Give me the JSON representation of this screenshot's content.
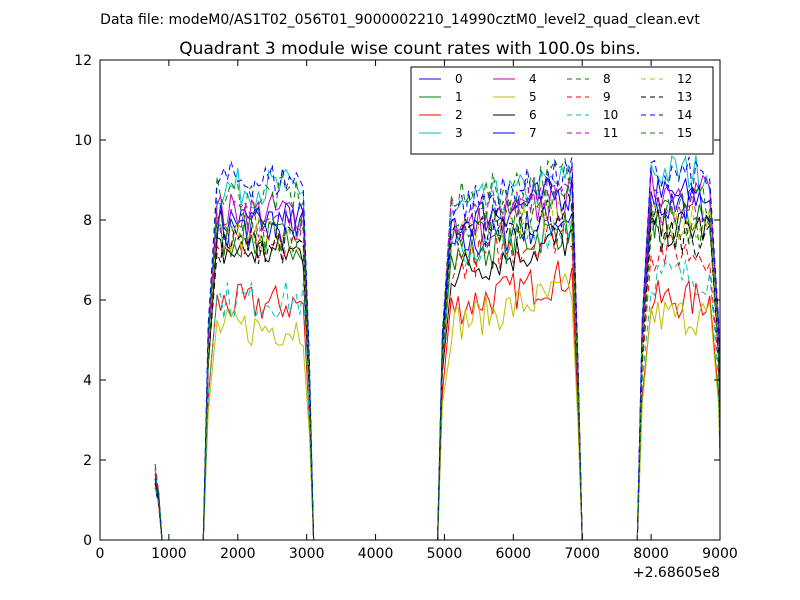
{
  "chart_data": {
    "type": "line",
    "suptitle": "Data file: modeM0/AS1T02_056T01_9000002210_14990cztM0_level2_quad_clean.evt",
    "title": "Quadrant 3 module wise count rates with 100.0s bins.",
    "xlabel": "",
    "ylabel": "",
    "x_offset_label": "+2.68605e8",
    "xlim": [
      0,
      9000
    ],
    "ylim": [
      0,
      12
    ],
    "xticks": [
      0,
      1000,
      2000,
      3000,
      4000,
      5000,
      6000,
      7000,
      8000,
      9000
    ],
    "yticks": [
      0,
      2,
      4,
      6,
      8,
      10,
      12
    ],
    "grid": false,
    "legend": {
      "location": "top-right",
      "columns": 4
    },
    "segments": [
      {
        "start": 800,
        "end": 900,
        "curve": "start"
      },
      {
        "start": 1500,
        "end": 3100,
        "curve": "group1"
      },
      {
        "start": 4900,
        "end": 7000,
        "curve": "group2"
      },
      {
        "start": 7800,
        "end": 9000,
        "curve": "group3"
      }
    ],
    "series": [
      {
        "name": "0",
        "color": "#0000ff",
        "dash": "solid",
        "s1": 8.0,
        "s2": 7.6,
        "s3": 8.6
      },
      {
        "name": "1",
        "color": "#008000",
        "dash": "solid",
        "s1": 7.5,
        "s2": 7.3,
        "s3": 8.0
      },
      {
        "name": "2",
        "color": "#ff0000",
        "dash": "solid",
        "s1": 5.9,
        "s2": 6.1,
        "s3": 6.0
      },
      {
        "name": "3",
        "color": "#00bfbf",
        "dash": "solid",
        "s1": 8.8,
        "s2": 8.5,
        "s3": 9.2
      },
      {
        "name": "4",
        "color": "#bf00bf",
        "dash": "solid",
        "s1": 8.2,
        "s2": 8.0,
        "s3": 8.8
      },
      {
        "name": "5",
        "color": "#bfbf00",
        "dash": "solid",
        "s1": 5.3,
        "s2": 5.7,
        "s3": 5.6
      },
      {
        "name": "6",
        "color": "#000000",
        "dash": "solid",
        "s1": 7.2,
        "s2": 7.0,
        "s3": 7.8
      },
      {
        "name": "7",
        "color": "#0000ff",
        "dash": "solid",
        "s1": 7.8,
        "s2": 8.2,
        "s3": 8.4
      },
      {
        "name": "8",
        "color": "#008000",
        "dash": "dashed",
        "s1": 8.6,
        "s2": 8.7,
        "s3": 8.5
      },
      {
        "name": "9",
        "color": "#ff0000",
        "dash": "dashed",
        "s1": 7.3,
        "s2": 7.2,
        "s3": 7.2
      },
      {
        "name": "10",
        "color": "#00bfbf",
        "dash": "dashed",
        "s1": 6.0,
        "s2": 7.4,
        "s3": 6.6
      },
      {
        "name": "11",
        "color": "#bf00bf",
        "dash": "dashed",
        "s1": 8.0,
        "s2": 8.4,
        "s3": 8.3
      },
      {
        "name": "12",
        "color": "#bfbf00",
        "dash": "dashed",
        "s1": 7.6,
        "s2": 7.8,
        "s3": 7.9
      },
      {
        "name": "13",
        "color": "#000000",
        "dash": "dashed",
        "s1": 7.4,
        "s2": 7.8,
        "s3": 7.5
      },
      {
        "name": "14",
        "color": "#0000ff",
        "dash": "dashed",
        "s1": 9.0,
        "s2": 8.6,
        "s3": 9.1
      },
      {
        "name": "15",
        "color": "#008000",
        "dash": "dashed",
        "s1": 7.7,
        "s2": 8.0,
        "s3": 7.6
      }
    ]
  }
}
